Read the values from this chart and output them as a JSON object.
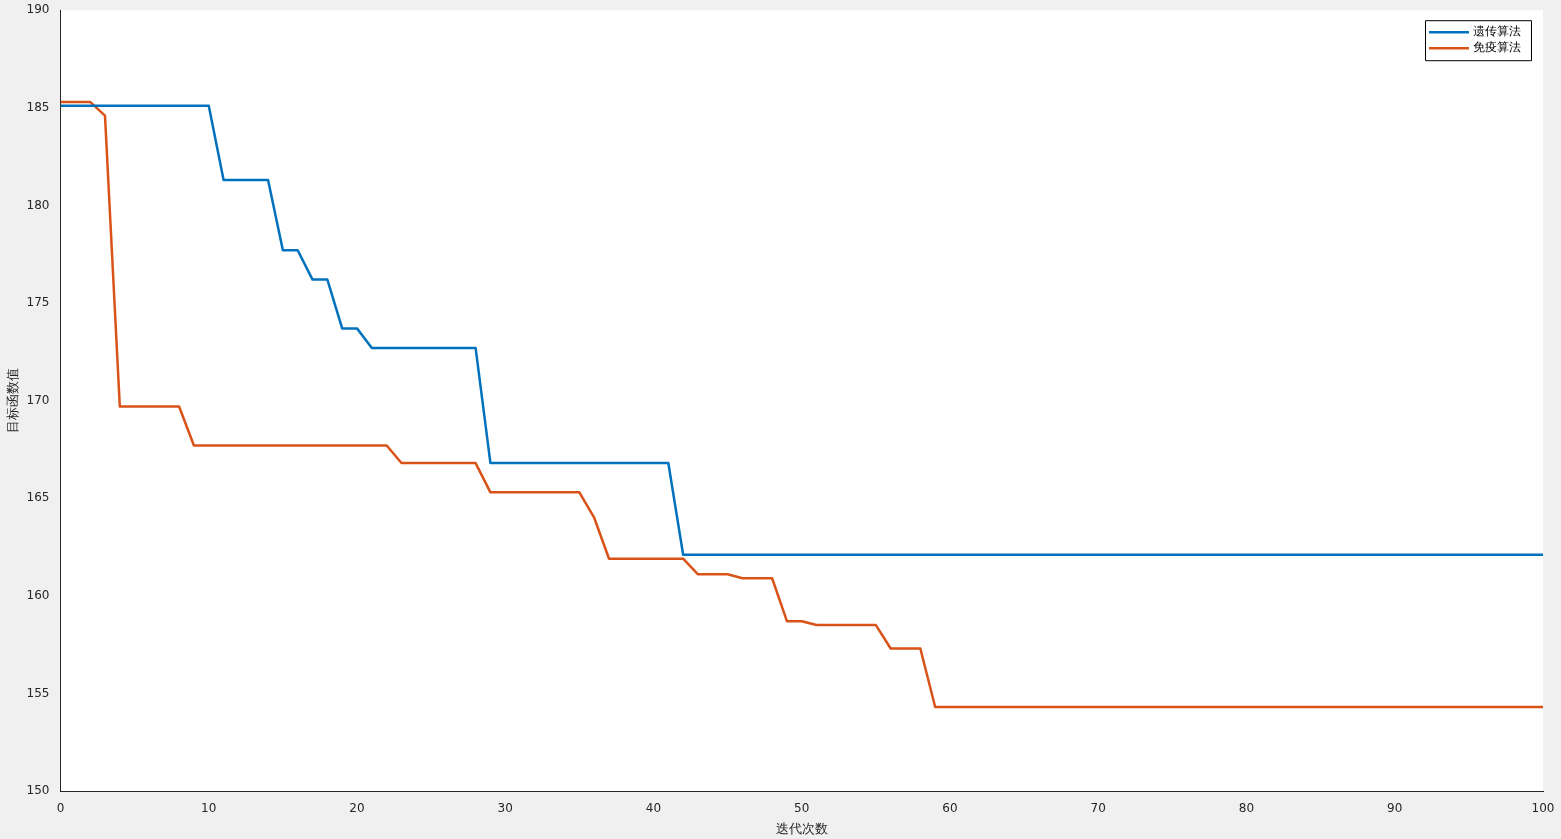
{
  "chart_data": {
    "type": "line",
    "xlabel": "迭代次数",
    "ylabel": "目标函数值",
    "xlim": [
      0,
      100
    ],
    "ylim": [
      150,
      190
    ],
    "xticks": [
      0,
      10,
      20,
      30,
      40,
      50,
      60,
      70,
      80,
      90,
      100
    ],
    "yticks": [
      150,
      155,
      160,
      165,
      170,
      175,
      180,
      185,
      190
    ],
    "grid": false,
    "legend": "top right",
    "marker": "none",
    "line_style": "solid",
    "series": [
      {
        "name": "遗传算法",
        "color": "#0072bd",
        "x": [
          0,
          10,
          11,
          14,
          15,
          16,
          17,
          18,
          19,
          20,
          21,
          28,
          29,
          41,
          42,
          100
        ],
        "values": [
          185.1,
          185.1,
          181.3,
          181.3,
          177.7,
          177.7,
          176.2,
          176.2,
          173.7,
          173.7,
          172.7,
          172.7,
          166.8,
          166.8,
          162.1,
          162.1
        ]
      },
      {
        "name": "免疫算法",
        "color": "#d95319",
        "x": [
          0,
          2,
          3,
          4,
          8,
          9,
          22,
          23,
          28,
          29,
          35,
          36,
          37,
          42,
          43,
          45,
          46,
          48,
          49,
          50,
          51,
          55,
          56,
          58,
          59,
          100
        ],
        "values": [
          185.3,
          185.3,
          184.6,
          169.7,
          169.7,
          167.7,
          167.7,
          166.8,
          166.8,
          165.3,
          165.3,
          164.0,
          161.9,
          161.9,
          161.1,
          161.1,
          160.9,
          160.9,
          158.7,
          158.7,
          158.5,
          158.5,
          157.3,
          157.3,
          154.3,
          154.3
        ]
      }
    ]
  }
}
